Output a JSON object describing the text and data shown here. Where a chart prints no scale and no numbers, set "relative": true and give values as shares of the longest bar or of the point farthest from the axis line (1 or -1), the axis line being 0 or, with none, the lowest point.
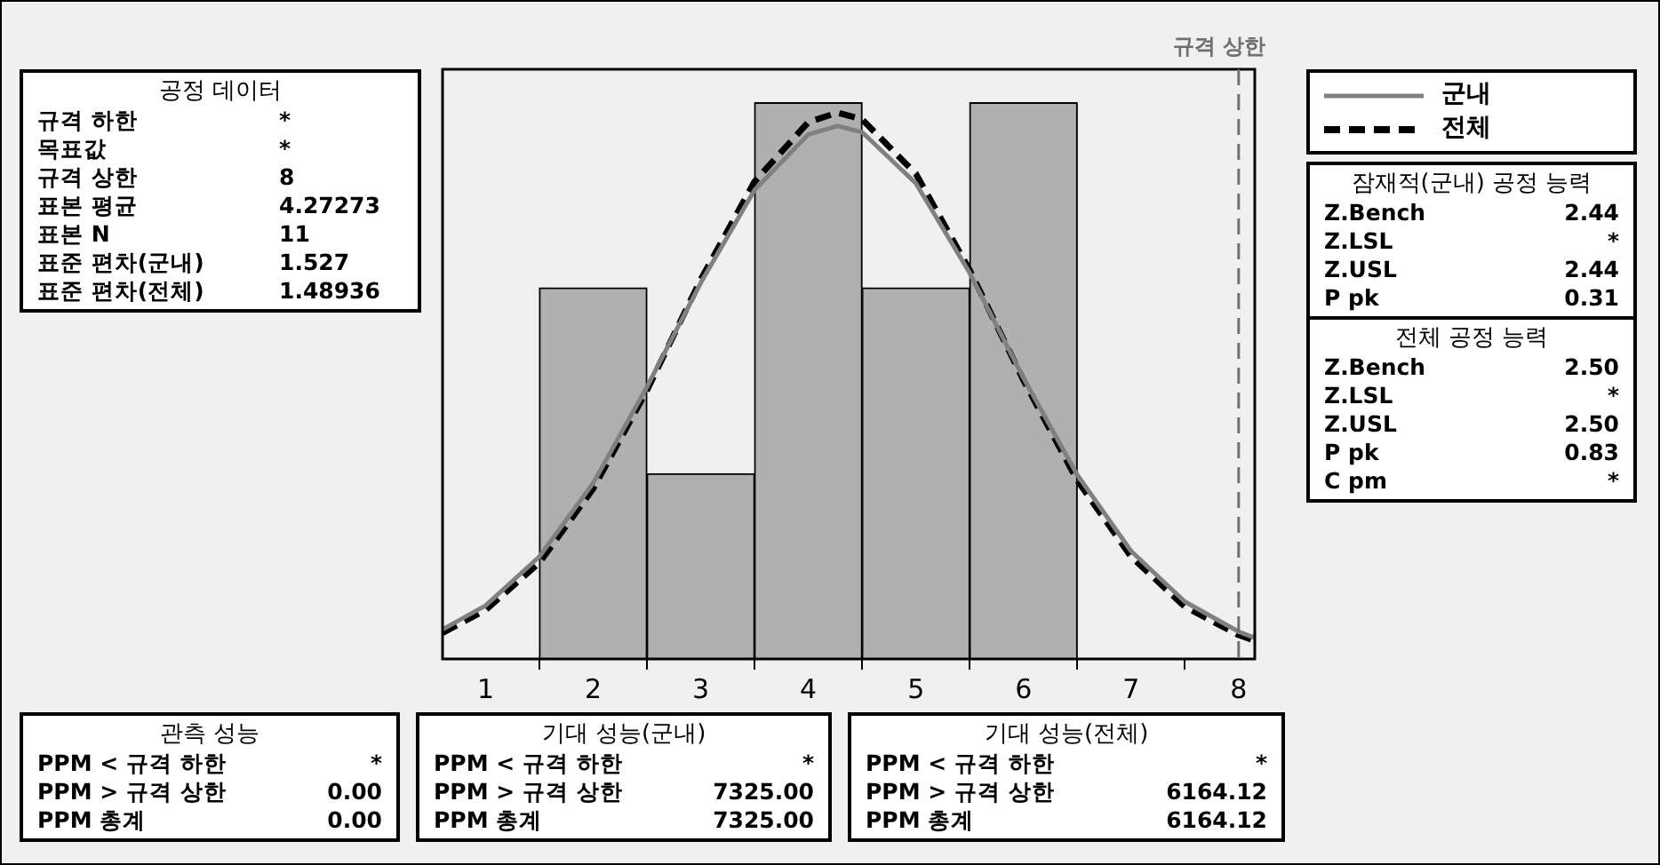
{
  "chart_data": {
    "type": "histogram",
    "relative": true,
    "xlim": [
      0.6,
      8.15
    ],
    "xticks": [
      1,
      2,
      3,
      4,
      5,
      6,
      7,
      8
    ],
    "legend": "right",
    "series": [
      {
        "color": "#b0b0b0",
        "bins": [
          1.5,
          2.5,
          3.5,
          4.5,
          5.5,
          6.5
        ],
        "values": [
          0.667,
          0.333,
          1,
          0.667,
          1
        ]
      },
      {
        "type": "line",
        "name": "군내",
        "color": "#808080",
        "line_style": "solid",
        "x": [
          0.6,
          1,
          1.5,
          2,
          2.5,
          3,
          3.5,
          4,
          4.27,
          4.5,
          5,
          5.5,
          6,
          6.5,
          7,
          7.5,
          8,
          8.15
        ],
        "values": [
          0.053,
          0.096,
          0.184,
          0.316,
          0.489,
          0.676,
          0.843,
          0.943,
          0.958,
          0.947,
          0.855,
          0.694,
          0.505,
          0.331,
          0.194,
          0.103,
          0.049,
          0.038
        ]
      },
      {
        "type": "line",
        "name": "전체",
        "color": "#000000",
        "line_style": "dashed",
        "x": [
          0.6,
          1,
          1.5,
          2,
          2.5,
          3,
          3.5,
          4,
          4.27,
          4.5,
          5,
          5.5,
          6,
          6.5,
          7,
          7.5,
          8,
          8.15
        ],
        "values": [
          0.047,
          0.088,
          0.173,
          0.306,
          0.483,
          0.682,
          0.858,
          0.965,
          0.982,
          0.97,
          0.872,
          0.699,
          0.501,
          0.321,
          0.184,
          0.094,
          0.043,
          0.033
        ]
      }
    ],
    "ref_lines": [
      {
        "axis": "x",
        "value": 8,
        "label": "규격 상한",
        "color": "#707070",
        "line_style": "dashed"
      }
    ],
    "annotations": [
      "공정 데이터",
      "규격 하한",
      "*",
      "목표값",
      "*",
      "규격 상한",
      "8",
      "표본 평균",
      "4.27273",
      "표본 N",
      "11",
      "표준 편차(군내)",
      "1.527",
      "표준 편차(전체)",
      "1.48936",
      "잠재적(군내) 공정 능력",
      "Z.Bench",
      "2.44",
      "Z.LSL",
      "*",
      "Z.USL",
      "2.44",
      "P pk",
      "0.31",
      "전체 공정 능력",
      "Z.Bench",
      "2.50",
      "Z.LSL",
      "*",
      "Z.USL",
      "2.50",
      "P pk",
      "0.83",
      "C pm",
      "*",
      "관측 성능",
      "PPM < 규격 하한",
      "*",
      "PPM > 규격 상한",
      "0.00",
      "PPM 총계",
      "0.00",
      "기대 성능(군내)",
      "PPM < 규격 하한",
      "*",
      "PPM > 규격 상한",
      "7325.00",
      "PPM 총계",
      "7325.00",
      "기대 성능(전체)",
      "PPM < 규격 하한",
      "*",
      "PPM > 규격 상한",
      "6164.12",
      "PPM 총계",
      "6164.12"
    ]
  }
}
